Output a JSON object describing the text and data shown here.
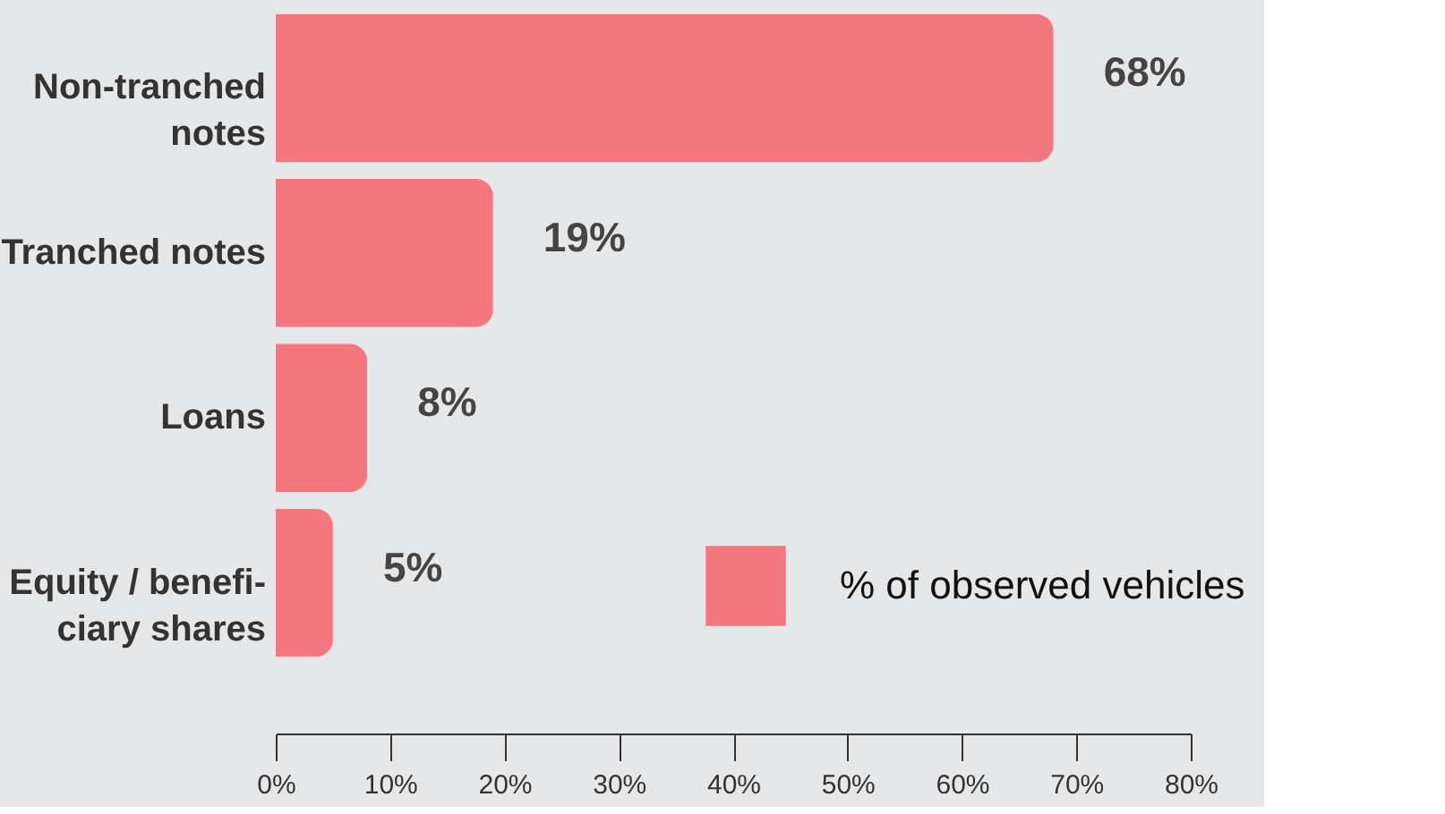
{
  "chart_data": {
    "type": "bar",
    "orientation": "horizontal",
    "categories": [
      "Non-tranched\nnotes",
      "Tranched notes",
      "Loans",
      "Equity / benefi-\nciary shares"
    ],
    "series": [
      {
        "name": "% of observed vehicles",
        "color": "#f4777f",
        "values": [
          68,
          19,
          8,
          5
        ]
      }
    ],
    "value_labels": [
      "68%",
      "19%",
      "8%",
      "5%"
    ],
    "xlim": [
      0,
      80
    ],
    "xticks": [
      {
        "value": 0,
        "label": "0%"
      },
      {
        "value": 10,
        "label": "10%"
      },
      {
        "value": 20,
        "label": "20%"
      },
      {
        "value": 30,
        "label": "30%"
      },
      {
        "value": 40,
        "label": "40%"
      },
      {
        "value": 50,
        "label": "50%"
      },
      {
        "value": 60,
        "label": "60%"
      },
      {
        "value": 70,
        "label": "70%"
      },
      {
        "value": 80,
        "label": "80%"
      }
    ],
    "grid": false,
    "legend": "bottom right"
  }
}
